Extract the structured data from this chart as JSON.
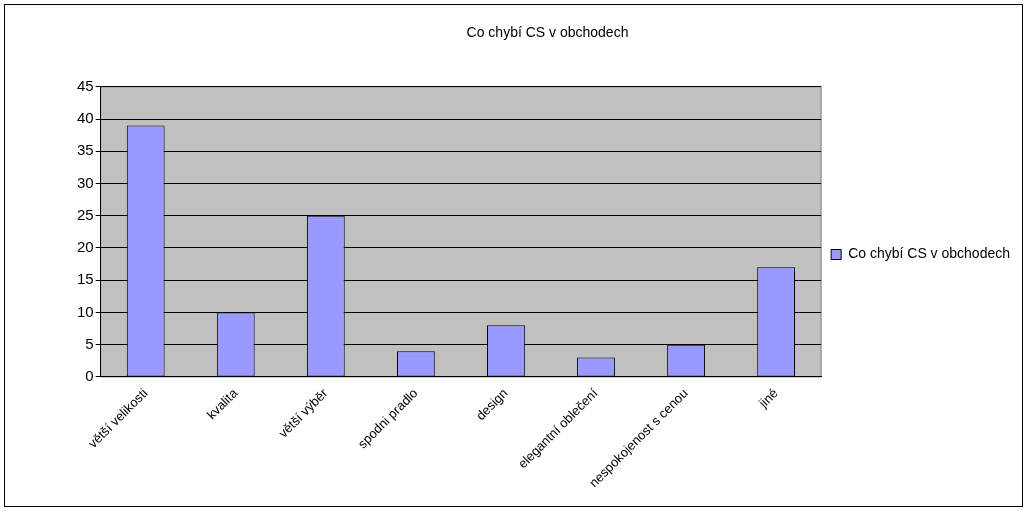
{
  "chart_data": {
    "type": "bar",
    "title": "Co chybí CS v obchodech",
    "categories": [
      "větší velikosti",
      "kvalita",
      "větší výběr",
      "spodni pradlo",
      "design",
      "elegantní oblečení",
      "nespokojenost s cenou",
      "jiné"
    ],
    "series": [
      {
        "name": "Co chybí CS v obchodech",
        "color": "#9999ff",
        "values": [
          39,
          10,
          25,
          4,
          8,
          3,
          5,
          17
        ]
      }
    ],
    "ylim": [
      0,
      45
    ],
    "yticks": [
      0,
      5,
      10,
      15,
      20,
      25,
      30,
      35,
      40,
      45
    ],
    "grid": "y",
    "legend": "right"
  }
}
